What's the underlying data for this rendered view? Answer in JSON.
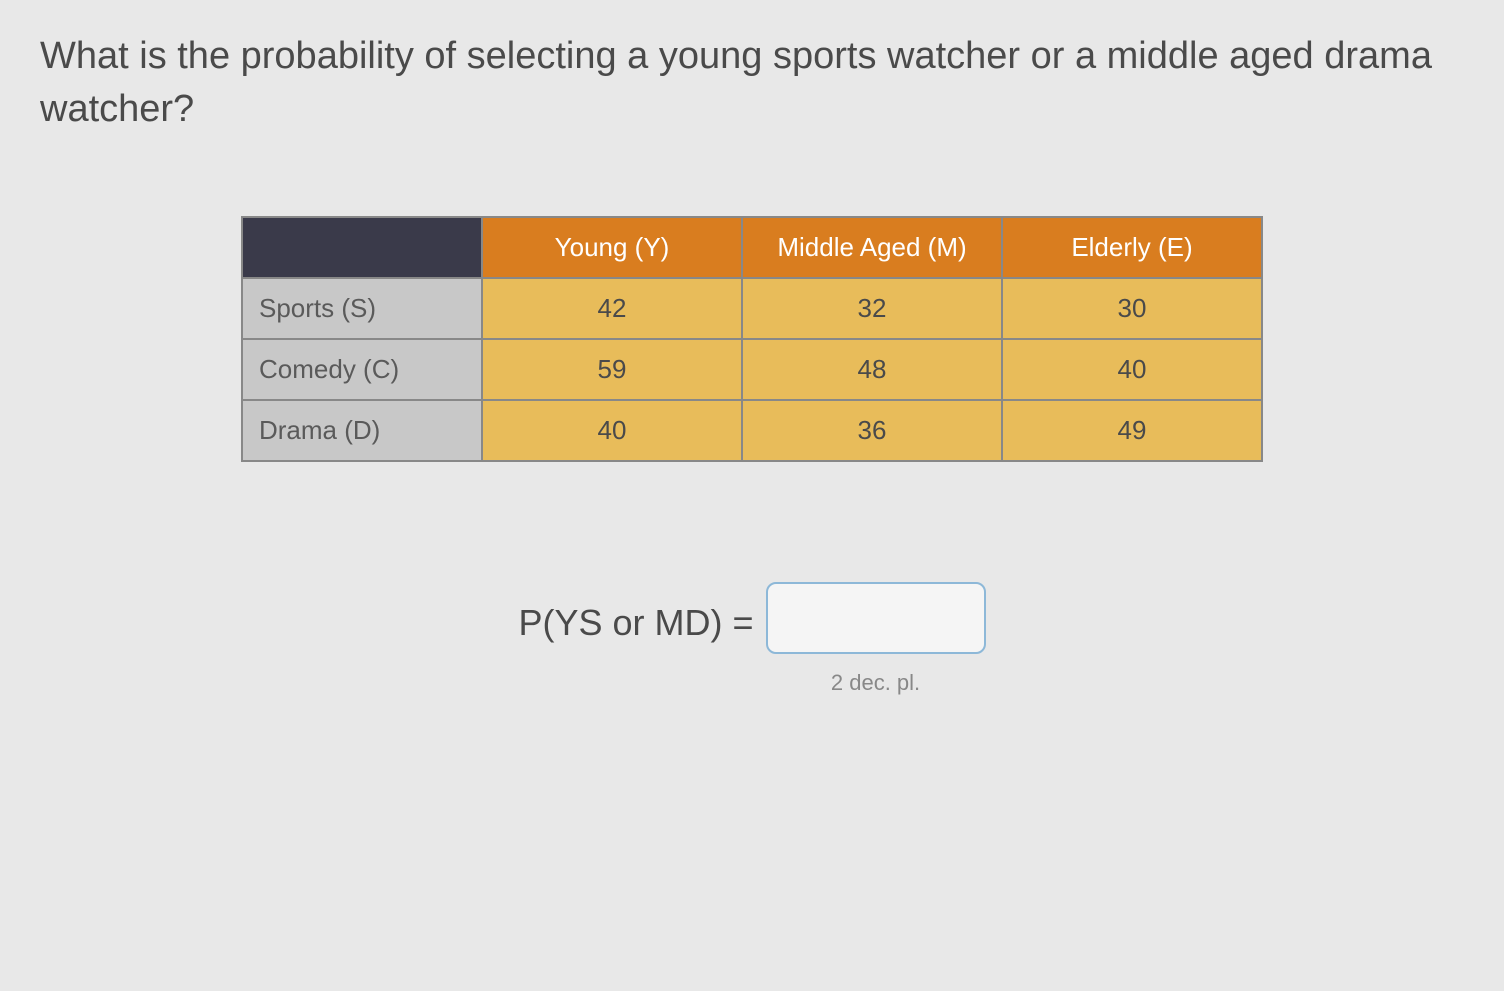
{
  "question": "What is the probability of selecting a young sports watcher or a middle aged drama watcher?",
  "table": {
    "col_headers": [
      "Young (Y)",
      "Middle Aged (M)",
      "Elderly (E)"
    ],
    "row_headers": [
      "Sports (S)",
      "Comedy (C)",
      "Drama (D)"
    ],
    "rows": [
      [
        42,
        32,
        30
      ],
      [
        59,
        48,
        40
      ],
      [
        40,
        36,
        49
      ]
    ],
    "corner_bg": "#3a3a4a",
    "col_header_bg": "#d97d1f",
    "col_header_color": "#ffffff",
    "row_header_bg": "#c8c8c8",
    "row_header_color": "#5a5a5a",
    "data_cell_bg": "#e8bc5a",
    "data_cell_color": "#4a4a4a",
    "border_color": "#888888",
    "font_size": 26
  },
  "answer": {
    "label": "P(YS or MD) =",
    "value": "",
    "hint": "2 dec. pl.",
    "input_border_color": "#8db8d8",
    "input_bg": "#f5f5f5"
  },
  "page_bg": "#e8e8e8",
  "text_color": "#4a4a4a",
  "question_fontsize": 38,
  "answer_label_fontsize": 36,
  "hint_fontsize": 22
}
